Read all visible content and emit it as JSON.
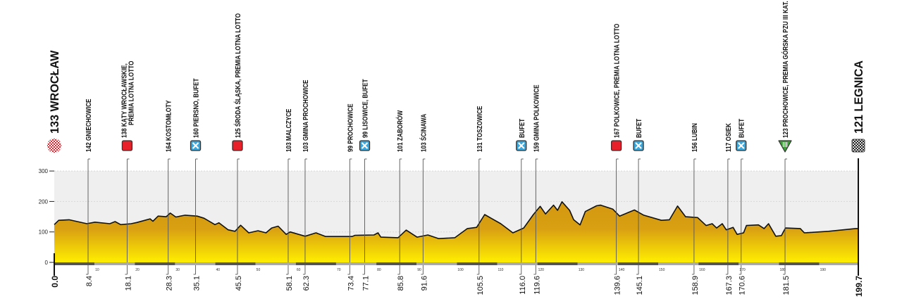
{
  "chart_data": {
    "type": "area",
    "title": "",
    "xlabel": "",
    "ylabel": "",
    "xlim": [
      0,
      199.7
    ],
    "ylim": [
      0,
      300
    ],
    "y_ticks": [
      "0",
      "100",
      "200",
      "300"
    ],
    "x_ticks": [
      "10",
      "20",
      "30",
      "40",
      "50",
      "60",
      "70",
      "80",
      "90",
      "100",
      "110",
      "120",
      "130",
      "140",
      "150",
      "160",
      "170",
      "180",
      "190"
    ],
    "grid": true,
    "colors": {
      "fill_top": "#d49a10",
      "fill_bottom": "#ffee00",
      "line": "#111111",
      "band": "#efefef",
      "sprint": "#e8202a",
      "feed": "#3aa7dd",
      "climb": "#3aa335"
    },
    "profile": [
      [
        0,
        124
      ],
      [
        1.1,
        138
      ],
      [
        3.7,
        140
      ],
      [
        8.1,
        127
      ],
      [
        10.1,
        132
      ],
      [
        13.8,
        127
      ],
      [
        15.1,
        134
      ],
      [
        16.5,
        124
      ],
      [
        19.1,
        127
      ],
      [
        20.5,
        131
      ],
      [
        22.5,
        138
      ],
      [
        23.8,
        143
      ],
      [
        24.5,
        135
      ],
      [
        25.8,
        152
      ],
      [
        27.8,
        150
      ],
      [
        28.8,
        162
      ],
      [
        30.2,
        149
      ],
      [
        32.5,
        155
      ],
      [
        35.5,
        152
      ],
      [
        37.2,
        145
      ],
      [
        39.9,
        124
      ],
      [
        40.9,
        130
      ],
      [
        43.2,
        107
      ],
      [
        44.9,
        102
      ],
      [
        46.3,
        122
      ],
      [
        48.3,
        97
      ],
      [
        50.6,
        104
      ],
      [
        52.6,
        97
      ],
      [
        54,
        113
      ],
      [
        55.6,
        119
      ],
      [
        57.6,
        92
      ],
      [
        58.6,
        100
      ],
      [
        62.3,
        86
      ],
      [
        65,
        97
      ],
      [
        67.4,
        85
      ],
      [
        74,
        85
      ],
      [
        74.7,
        89
      ],
      [
        79.4,
        90
      ],
      [
        80.4,
        97
      ],
      [
        81.1,
        83
      ],
      [
        85.4,
        81
      ],
      [
        87.4,
        106
      ],
      [
        90.1,
        83
      ],
      [
        92.8,
        90
      ],
      [
        95.5,
        78
      ],
      [
        99.5,
        81
      ],
      [
        102.6,
        111
      ],
      [
        104.9,
        115
      ],
      [
        106.9,
        157
      ],
      [
        108.6,
        144
      ],
      [
        110.9,
        127
      ],
      [
        113.9,
        97
      ],
      [
        116.6,
        113
      ],
      [
        119,
        157
      ],
      [
        120.7,
        184
      ],
      [
        122,
        159
      ],
      [
        124,
        188
      ],
      [
        125,
        171
      ],
      [
        126.1,
        199
      ],
      [
        128,
        171
      ],
      [
        129,
        140
      ],
      [
        130.6,
        123
      ],
      [
        131.9,
        167
      ],
      [
        134.7,
        186
      ],
      [
        135.7,
        188
      ],
      [
        138.7,
        175
      ],
      [
        140.4,
        152
      ],
      [
        144.1,
        172
      ],
      [
        146.4,
        155
      ],
      [
        150.8,
        138
      ],
      [
        152.8,
        140
      ],
      [
        154.8,
        185
      ],
      [
        156.8,
        150
      ],
      [
        159.8,
        147
      ],
      [
        161.9,
        121
      ],
      [
        163.4,
        127
      ],
      [
        164.5,
        113
      ],
      [
        165.9,
        127
      ],
      [
        166.9,
        107
      ],
      [
        168.6,
        115
      ],
      [
        169.6,
        92
      ],
      [
        171.2,
        97
      ],
      [
        171.9,
        121
      ],
      [
        174.9,
        123
      ],
      [
        176.3,
        111
      ],
      [
        177.4,
        127
      ],
      [
        179.2,
        86
      ],
      [
        180.6,
        88
      ],
      [
        181.6,
        113
      ],
      [
        185.3,
        111
      ],
      [
        186.3,
        97
      ],
      [
        192.3,
        102
      ],
      [
        199,
        111
      ],
      [
        199.7,
        111
      ]
    ],
    "start": {
      "km": "0.0",
      "label": "133 WROCŁAW",
      "icon": "start-icon"
    },
    "finish": {
      "km": "199.7",
      "label": "121 LEGNICA",
      "icon": "finish-icon"
    },
    "points": [
      {
        "km": "8.4",
        "lines": [
          "142  GNIECHOWICE"
        ],
        "icon": ""
      },
      {
        "km": "18.1",
        "lines": [
          "138  KĄTY WROCŁAWSKIE,",
          "PREMIA LOTNA LOTTO"
        ],
        "icon": "sprint-icon"
      },
      {
        "km": "28.3",
        "lines": [
          "164  KOSTOMŁOTY"
        ],
        "icon": ""
      },
      {
        "km": "35.1",
        "lines": [
          "160  PIERSNO, BUFET"
        ],
        "icon": "feed-icon"
      },
      {
        "km": "45.5",
        "lines": [
          "125  ŚRODA ŚLĄSKA, PREMIA LOTNA LOTTO"
        ],
        "icon": "sprint-icon"
      },
      {
        "km": "58.1",
        "lines": [
          "103  MALCZYCE"
        ],
        "icon": ""
      },
      {
        "km": "62.3",
        "lines": [
          "103  GMINA PROCHOWICE"
        ],
        "icon": ""
      },
      {
        "km": "73.4",
        "lines": [
          "99  PROCHOWICE"
        ],
        "icon": ""
      },
      {
        "km": "77.1",
        "lines": [
          "99  LISOWICE, BUFET"
        ],
        "icon": "feed-icon"
      },
      {
        "km": "85.8",
        "lines": [
          "101  ZABORÓW"
        ],
        "icon": ""
      },
      {
        "km": "91.6",
        "lines": [
          "103  ŚCINAWA"
        ],
        "icon": ""
      },
      {
        "km": "105.5",
        "lines": [
          "131  TOSZOWICE"
        ],
        "icon": ""
      },
      {
        "km": "116.0",
        "lines": [
          "BUFET"
        ],
        "icon": "feed-icon"
      },
      {
        "km": "119.6",
        "lines": [
          "159  GMINA POLKOWICE"
        ],
        "icon": ""
      },
      {
        "km": "139.6",
        "lines": [
          "167  POLKOWICE, PREMIA LOTNA LOTTO"
        ],
        "icon": "sprint-icon"
      },
      {
        "km": "145.1",
        "lines": [
          "BUFET"
        ],
        "icon": "feed-icon"
      },
      {
        "km": "158.9",
        "lines": [
          "156  LUBIN"
        ],
        "icon": ""
      },
      {
        "km": "167.3",
        "lines": [
          "117  OSIEK"
        ],
        "icon": ""
      },
      {
        "km": "170.6",
        "lines": [
          "BUFET"
        ],
        "icon": "feed-icon"
      },
      {
        "km": "181.5",
        "lines": [
          "123  PROCHOWICE, PREMIA GÓRSKA PZU III KAT."
        ],
        "icon": "climb-icon",
        "category": "III"
      }
    ]
  }
}
